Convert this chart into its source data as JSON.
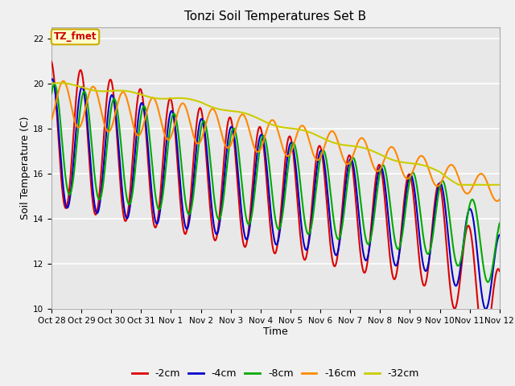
{
  "title": "Tonzi Soil Temperatures Set B",
  "xlabel": "Time",
  "ylabel": "Soil Temperature (C)",
  "ylim": [
    10,
    22.5
  ],
  "annotation": "TZ_fmet",
  "annotation_color": "#cc0000",
  "annotation_bg": "#ffffcc",
  "annotation_border": "#ccaa00",
  "series": {
    "-2cm": {
      "color": "#dd0000",
      "linewidth": 1.5
    },
    "-4cm": {
      "color": "#0000cc",
      "linewidth": 1.5
    },
    "-8cm": {
      "color": "#00aa00",
      "linewidth": 1.5
    },
    "-16cm": {
      "color": "#ff8800",
      "linewidth": 1.5
    },
    "-32cm": {
      "color": "#cccc00",
      "linewidth": 1.5
    }
  },
  "yticks": [
    10,
    12,
    14,
    16,
    18,
    20,
    22
  ],
  "xtick_labels": [
    "Oct 28",
    "Oct 29",
    "Oct 30",
    "Oct 31",
    "Nov 1",
    "Nov 2",
    "Nov 3",
    "Nov 4",
    "Nov 5",
    "Nov 6",
    "Nov 7",
    "Nov 8",
    "Nov 9",
    "Nov 10",
    "Nov 11",
    "Nov 12"
  ],
  "bg_color": "#e8e8e8",
  "grid_color": "#ffffff"
}
